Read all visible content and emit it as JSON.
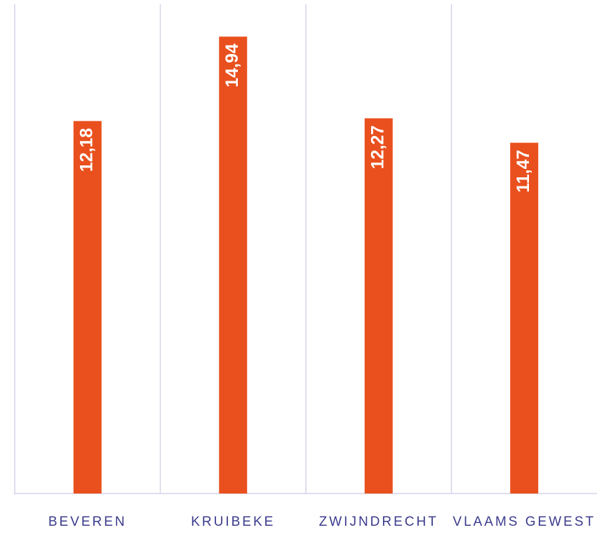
{
  "chart_data": {
    "type": "bar",
    "categories": [
      "BEVEREN",
      "KRUIBEKE",
      "ZWIJNDRECHT",
      "VLAAMS GEWEST"
    ],
    "values": [
      12.18,
      14.94,
      12.27,
      11.47
    ],
    "value_labels": [
      "12,18",
      "14,94",
      "12,27",
      "11,47"
    ],
    "color": "#e9501e",
    "ylim": [
      0,
      16
    ]
  }
}
